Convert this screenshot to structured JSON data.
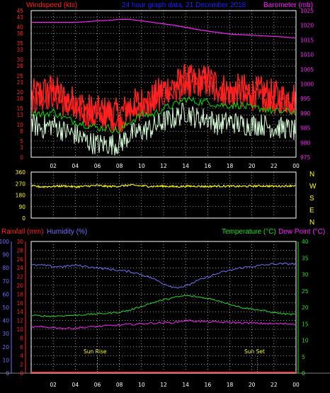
{
  "colors": {
    "bg": "#000000",
    "axis": "#ffffff",
    "grid": "#ffffff",
    "wind_red": "#ff2020",
    "wind_avg": "#ff0000",
    "gust_white": "#d8ffd8",
    "green": "#00e000",
    "barometer": "#ff20ff",
    "direction": "#ffff00",
    "rain": "#ff2020",
    "humidity": "#7070ff",
    "temperature": "#20e020",
    "dewpoint": "#ff20ff",
    "yellow_axis": "#ffff00",
    "green_axis": "#20ff20",
    "title_blue": "#2020ff"
  },
  "header": {
    "windspeed": "Windspeed (kts)",
    "title": "24 hour graph data, 21 December 2018",
    "barometer": "Barometer (mb)"
  },
  "middle": {
    "compass": [
      "N",
      "W",
      "S",
      "E",
      "N"
    ]
  },
  "bottom_header": {
    "rainfall": "Rainfall (mm)",
    "humidity": "Humidity (%)",
    "temperature": "Temperature (°C)",
    "dewpoint": "Dew Point (°C)"
  },
  "annotations": {
    "sunrise": "Sun Rise",
    "sunset": "Sun Set"
  },
  "chart_data": [
    {
      "type": "line",
      "x": [
        0,
        1,
        2,
        3,
        4,
        5,
        6,
        7,
        8,
        9,
        10,
        11,
        12,
        13,
        14,
        15,
        16,
        17,
        18,
        19,
        20,
        21,
        22,
        23,
        24
      ],
      "x_tick_labels": [
        "02",
        "04",
        "06",
        "08",
        "10",
        "12",
        "14",
        "16",
        "18",
        "20",
        "22",
        "00"
      ],
      "y_left_ticks": [
        0,
        3,
        5,
        8,
        10,
        13,
        15,
        18,
        20,
        23,
        25,
        28,
        30,
        33,
        35,
        38,
        40,
        43,
        45
      ],
      "ylim_left": [
        0,
        45
      ],
      "y_right_ticks": [
        975,
        980,
        985,
        990,
        995,
        1000,
        1005,
        1010,
        1015,
        1020,
        1025
      ],
      "ylim_right": [
        975,
        1025
      ],
      "grid": true,
      "series": [
        {
          "axis": "left",
          "values": [
            19,
            20,
            21,
            18,
            17,
            15,
            14,
            14,
            13,
            16,
            17,
            18,
            21,
            22,
            24,
            23,
            24,
            22,
            20,
            21,
            20,
            20,
            19,
            18,
            19
          ]
        },
        {
          "axis": "left",
          "values": [
            14,
            13,
            14,
            12,
            11,
            10,
            9,
            9,
            8,
            11,
            13,
            13,
            15,
            16,
            18,
            17,
            17,
            16,
            16,
            16,
            15,
            15,
            14,
            14,
            14
          ]
        },
        {
          "axis": "left",
          "values": [
            10,
            9,
            10,
            8,
            7,
            5,
            4,
            4,
            4,
            7,
            8,
            9,
            11,
            12,
            14,
            12,
            12,
            10,
            11,
            10,
            10,
            10,
            9,
            9,
            8
          ]
        },
        {
          "axis": "right",
          "values": [
            1021,
            1021,
            1021,
            1021,
            1021,
            1021.2,
            1021.5,
            1021.7,
            1022,
            1022,
            1021.5,
            1021,
            1020.5,
            1020,
            1019.3,
            1018.6,
            1018,
            1017.5,
            1017,
            1016.8,
            1016.6,
            1016.4,
            1016.2,
            1016,
            1015.6
          ]
        }
      ]
    },
    {
      "type": "line",
      "x": [
        0,
        1,
        2,
        3,
        4,
        5,
        6,
        7,
        8,
        9,
        10,
        11,
        12,
        13,
        14,
        15,
        16,
        17,
        18,
        19,
        20,
        21,
        22,
        23,
        24
      ],
      "x_tick_labels": [
        "02",
        "04",
        "06",
        "08",
        "10",
        "12",
        "14",
        "16",
        "18",
        "20",
        "22",
        "00"
      ],
      "y_ticks": [
        0,
        90,
        180,
        270,
        360
      ],
      "ylim": [
        0,
        360
      ],
      "grid": true,
      "series": [
        {
          "values": [
            250,
            245,
            248,
            252,
            244,
            250,
            255,
            247,
            250,
            258,
            252,
            248,
            250,
            246,
            249,
            250,
            247,
            251,
            249,
            248,
            250,
            252,
            249,
            251,
            255
          ]
        }
      ]
    },
    {
      "type": "line",
      "x": [
        0,
        1,
        2,
        3,
        4,
        5,
        6,
        7,
        8,
        9,
        10,
        11,
        12,
        13,
        14,
        15,
        16,
        17,
        18,
        19,
        20,
        21,
        22,
        23,
        24
      ],
      "x_tick_labels": [
        "02",
        "04",
        "06",
        "08",
        "10",
        "12",
        "14",
        "16",
        "18",
        "20",
        "22",
        "00"
      ],
      "y_rain_ticks": [
        0,
        2,
        4,
        6,
        8,
        10,
        12,
        14,
        16,
        18,
        20,
        22,
        24,
        26,
        28,
        30
      ],
      "ylim_rain": [
        0,
        30
      ],
      "y_humidity_ticks": [
        0,
        10,
        20,
        30,
        40,
        50,
        60,
        70,
        80,
        90,
        100
      ],
      "ylim_humidity": [
        0,
        100
      ],
      "y_temp_ticks": [
        0,
        5,
        10,
        15,
        20,
        25,
        30,
        35,
        40
      ],
      "ylim_temp": [
        0,
        40
      ],
      "grid": true,
      "series": [
        {
          "axis": "rain",
          "values": [
            0,
            0,
            0,
            0,
            0,
            0,
            0,
            0,
            0,
            0,
            0,
            0,
            0,
            0,
            0,
            0,
            0,
            0,
            0,
            0,
            0,
            0,
            0,
            0,
            0
          ]
        },
        {
          "axis": "humidity",
          "values": [
            82,
            82,
            81,
            81,
            82,
            81,
            80,
            79,
            78,
            77,
            75,
            72,
            68,
            65,
            66,
            70,
            73,
            76,
            78,
            80,
            81,
            82,
            83,
            83,
            83
          ]
        },
        {
          "axis": "temp",
          "values": [
            17.5,
            17.4,
            17.3,
            17.5,
            17.6,
            17.8,
            18,
            18.2,
            18.5,
            19.2,
            20.3,
            21.4,
            22.3,
            23,
            23.6,
            23.2,
            22.7,
            22,
            21,
            20,
            19.5,
            19,
            18.4,
            18,
            17.8
          ]
        },
        {
          "axis": "temp",
          "values": [
            14,
            14,
            13.9,
            13.6,
            13.7,
            14,
            14.2,
            14.4,
            14.6,
            14.8,
            15,
            15.2,
            15.3,
            15.4,
            16,
            15.8,
            15.6,
            15.5,
            15.4,
            15.3,
            15.2,
            15.1,
            15,
            15,
            14.9
          ]
        }
      ]
    }
  ]
}
